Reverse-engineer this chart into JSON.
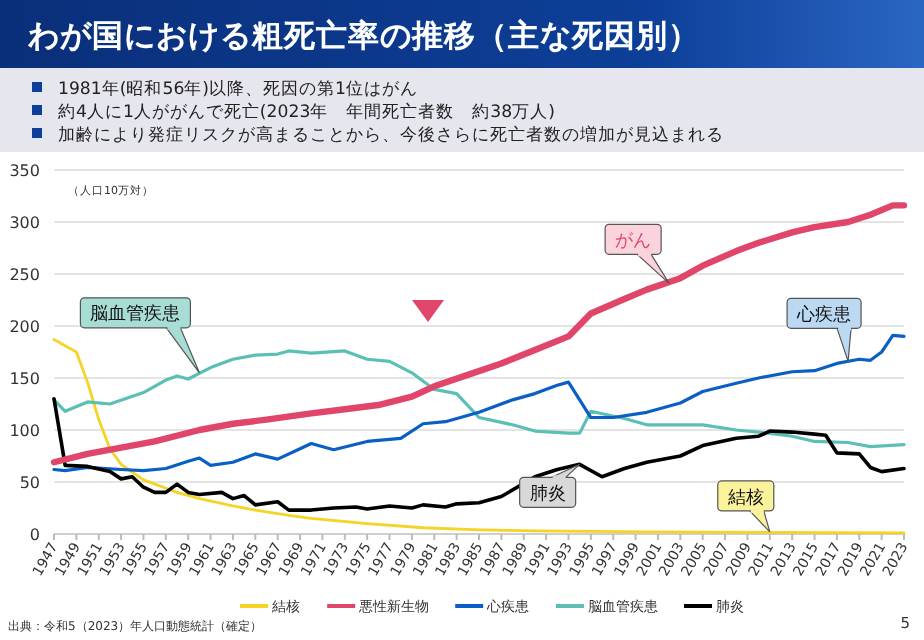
{
  "chart_data": {
    "type": "line",
    "title": "わが国における粗死亡率の推移（主な死因別）",
    "subtitle": "1981年(昭和56年)以降、死因の第1位はがん",
    "ylabel": "（人口10万対）",
    "annotations": [
      "約4人に1人ががんで死亡(2023年　年間死亡者数　約38万人)",
      "加齢により発症リスクが高まることから、今後さらに死亡者数の増加が見込まれる",
      {
        "text": "がん",
        "x": 2002,
        "y": 241
      },
      {
        "text": "脳血管疾患",
        "x": 1960,
        "y": 155
      },
      {
        "text": "心疾患",
        "x": 2018,
        "y": 166
      },
      {
        "text": "肺炎",
        "x": 1994,
        "y": 67
      },
      {
        "text": "結核",
        "x": 2011,
        "y": 2
      },
      "出典：令和5（2023）年人口動態統計（確定）",
      "5"
    ],
    "xlim": [
      1947,
      2023
    ],
    "xticks": [
      1947,
      1949,
      1951,
      1953,
      1955,
      1957,
      1959,
      1961,
      1963,
      1965,
      1967,
      1969,
      1971,
      1973,
      1975,
      1977,
      1979,
      1981,
      1983,
      1985,
      1987,
      1989,
      1991,
      1993,
      1995,
      1997,
      1999,
      2001,
      2003,
      2005,
      2007,
      2009,
      2011,
      2013,
      2015,
      2017,
      2019,
      2021,
      2023
    ],
    "ylim": [
      0,
      350
    ],
    "yticks": [
      0,
      50,
      100,
      150,
      200,
      250,
      300,
      350
    ],
    "grid": "y",
    "legend": "bottom",
    "marker": "none",
    "line_style": "solid",
    "series": [
      {
        "name": "結核",
        "color": "#f5d327",
        "x": [
          1947,
          1949,
          1950,
          1951,
          1952,
          1953,
          1955,
          1958,
          1960,
          1963,
          1965,
          1968,
          1970,
          1975,
          1980,
          1985,
          1990,
          2000,
          2023
        ],
        "values": [
          187,
          175,
          146,
          110,
          82,
          67,
          52,
          40,
          34,
          27,
          23,
          18,
          15,
          10,
          6,
          4,
          3,
          2,
          1
        ]
      },
      {
        "name": "悪性新生物",
        "color": "#e0456a",
        "x": [
          1947,
          1950,
          1953,
          1956,
          1960,
          1963,
          1966,
          1970,
          1973,
          1976,
          1979,
          1981,
          1984,
          1987,
          1990,
          1993,
          1995,
          1998,
          2000,
          2003,
          2005,
          2008,
          2010,
          2013,
          2015,
          2018,
          2020,
          2022,
          2023
        ],
        "values": [
          69,
          77,
          83,
          89,
          100,
          106,
          110,
          116,
          120,
          124,
          132,
          142,
          153,
          164,
          177,
          190,
          212,
          226,
          235,
          246,
          258,
          272,
          280,
          290,
          295,
          300,
          307,
          316,
          316
        ]
      },
      {
        "name": "心疾患",
        "color": "#0a5fc4",
        "x": [
          1947,
          1948,
          1950,
          1953,
          1955,
          1957,
          1959,
          1960,
          1961,
          1963,
          1965,
          1967,
          1969,
          1970,
          1972,
          1975,
          1978,
          1980,
          1982,
          1985,
          1988,
          1990,
          1992,
          1993,
          1995,
          1997,
          2000,
          2003,
          2005,
          2008,
          2010,
          2013,
          2015,
          2017,
          2019,
          2020,
          2021,
          2022,
          2023
        ],
        "values": [
          62,
          61,
          64,
          62,
          61,
          63,
          70,
          73,
          66,
          69,
          77,
          72,
          82,
          87,
          81,
          89,
          92,
          106,
          108,
          117,
          129,
          135,
          143,
          146,
          112,
          112,
          117,
          126,
          137,
          145,
          150,
          156,
          157,
          164,
          168,
          167,
          175,
          191,
          190
        ]
      },
      {
        "name": "脳血管疾患",
        "color": "#5bbfb5",
        "x": [
          1947,
          1948,
          1950,
          1952,
          1955,
          1957,
          1958,
          1959,
          1961,
          1963,
          1965,
          1967,
          1968,
          1970,
          1973,
          1975,
          1977,
          1979,
          1981,
          1983,
          1985,
          1988,
          1990,
          1993,
          1994,
          1995,
          1998,
          2000,
          2005,
          2008,
          2010,
          2013,
          2015,
          2018,
          2020,
          2023
        ],
        "values": [
          129,
          118,
          127,
          125,
          136,
          148,
          152,
          149,
          160,
          168,
          172,
          173,
          176,
          174,
          176,
          168,
          166,
          155,
          139,
          135,
          112,
          105,
          99,
          97,
          97,
          118,
          111,
          105,
          105,
          100,
          98,
          94,
          89,
          88,
          84,
          86
        ]
      },
      {
        "name": "肺炎",
        "color": "#000000",
        "x": [
          1947,
          1948,
          1950,
          1952,
          1953,
          1954,
          1955,
          1956,
          1957,
          1958,
          1959,
          1960,
          1962,
          1963,
          1964,
          1965,
          1967,
          1968,
          1970,
          1972,
          1974,
          1975,
          1977,
          1979,
          1980,
          1982,
          1983,
          1985,
          1987,
          1990,
          1992,
          1994,
          1996,
          1998,
          2000,
          2003,
          2005,
          2008,
          2010,
          2011,
          2013,
          2015,
          2016,
          2017,
          2019,
          2020,
          2021,
          2023
        ],
        "values": [
          130,
          66,
          65,
          60,
          53,
          55,
          45,
          40,
          40,
          48,
          40,
          38,
          40,
          34,
          37,
          28,
          31,
          23,
          23,
          25,
          26,
          24,
          27,
          25,
          28,
          26,
          29,
          30,
          36,
          55,
          62,
          67,
          55,
          63,
          69,
          75,
          85,
          92,
          94,
          99,
          98,
          96,
          95,
          78,
          77,
          64,
          60,
          63
        ]
      }
    ]
  }
}
